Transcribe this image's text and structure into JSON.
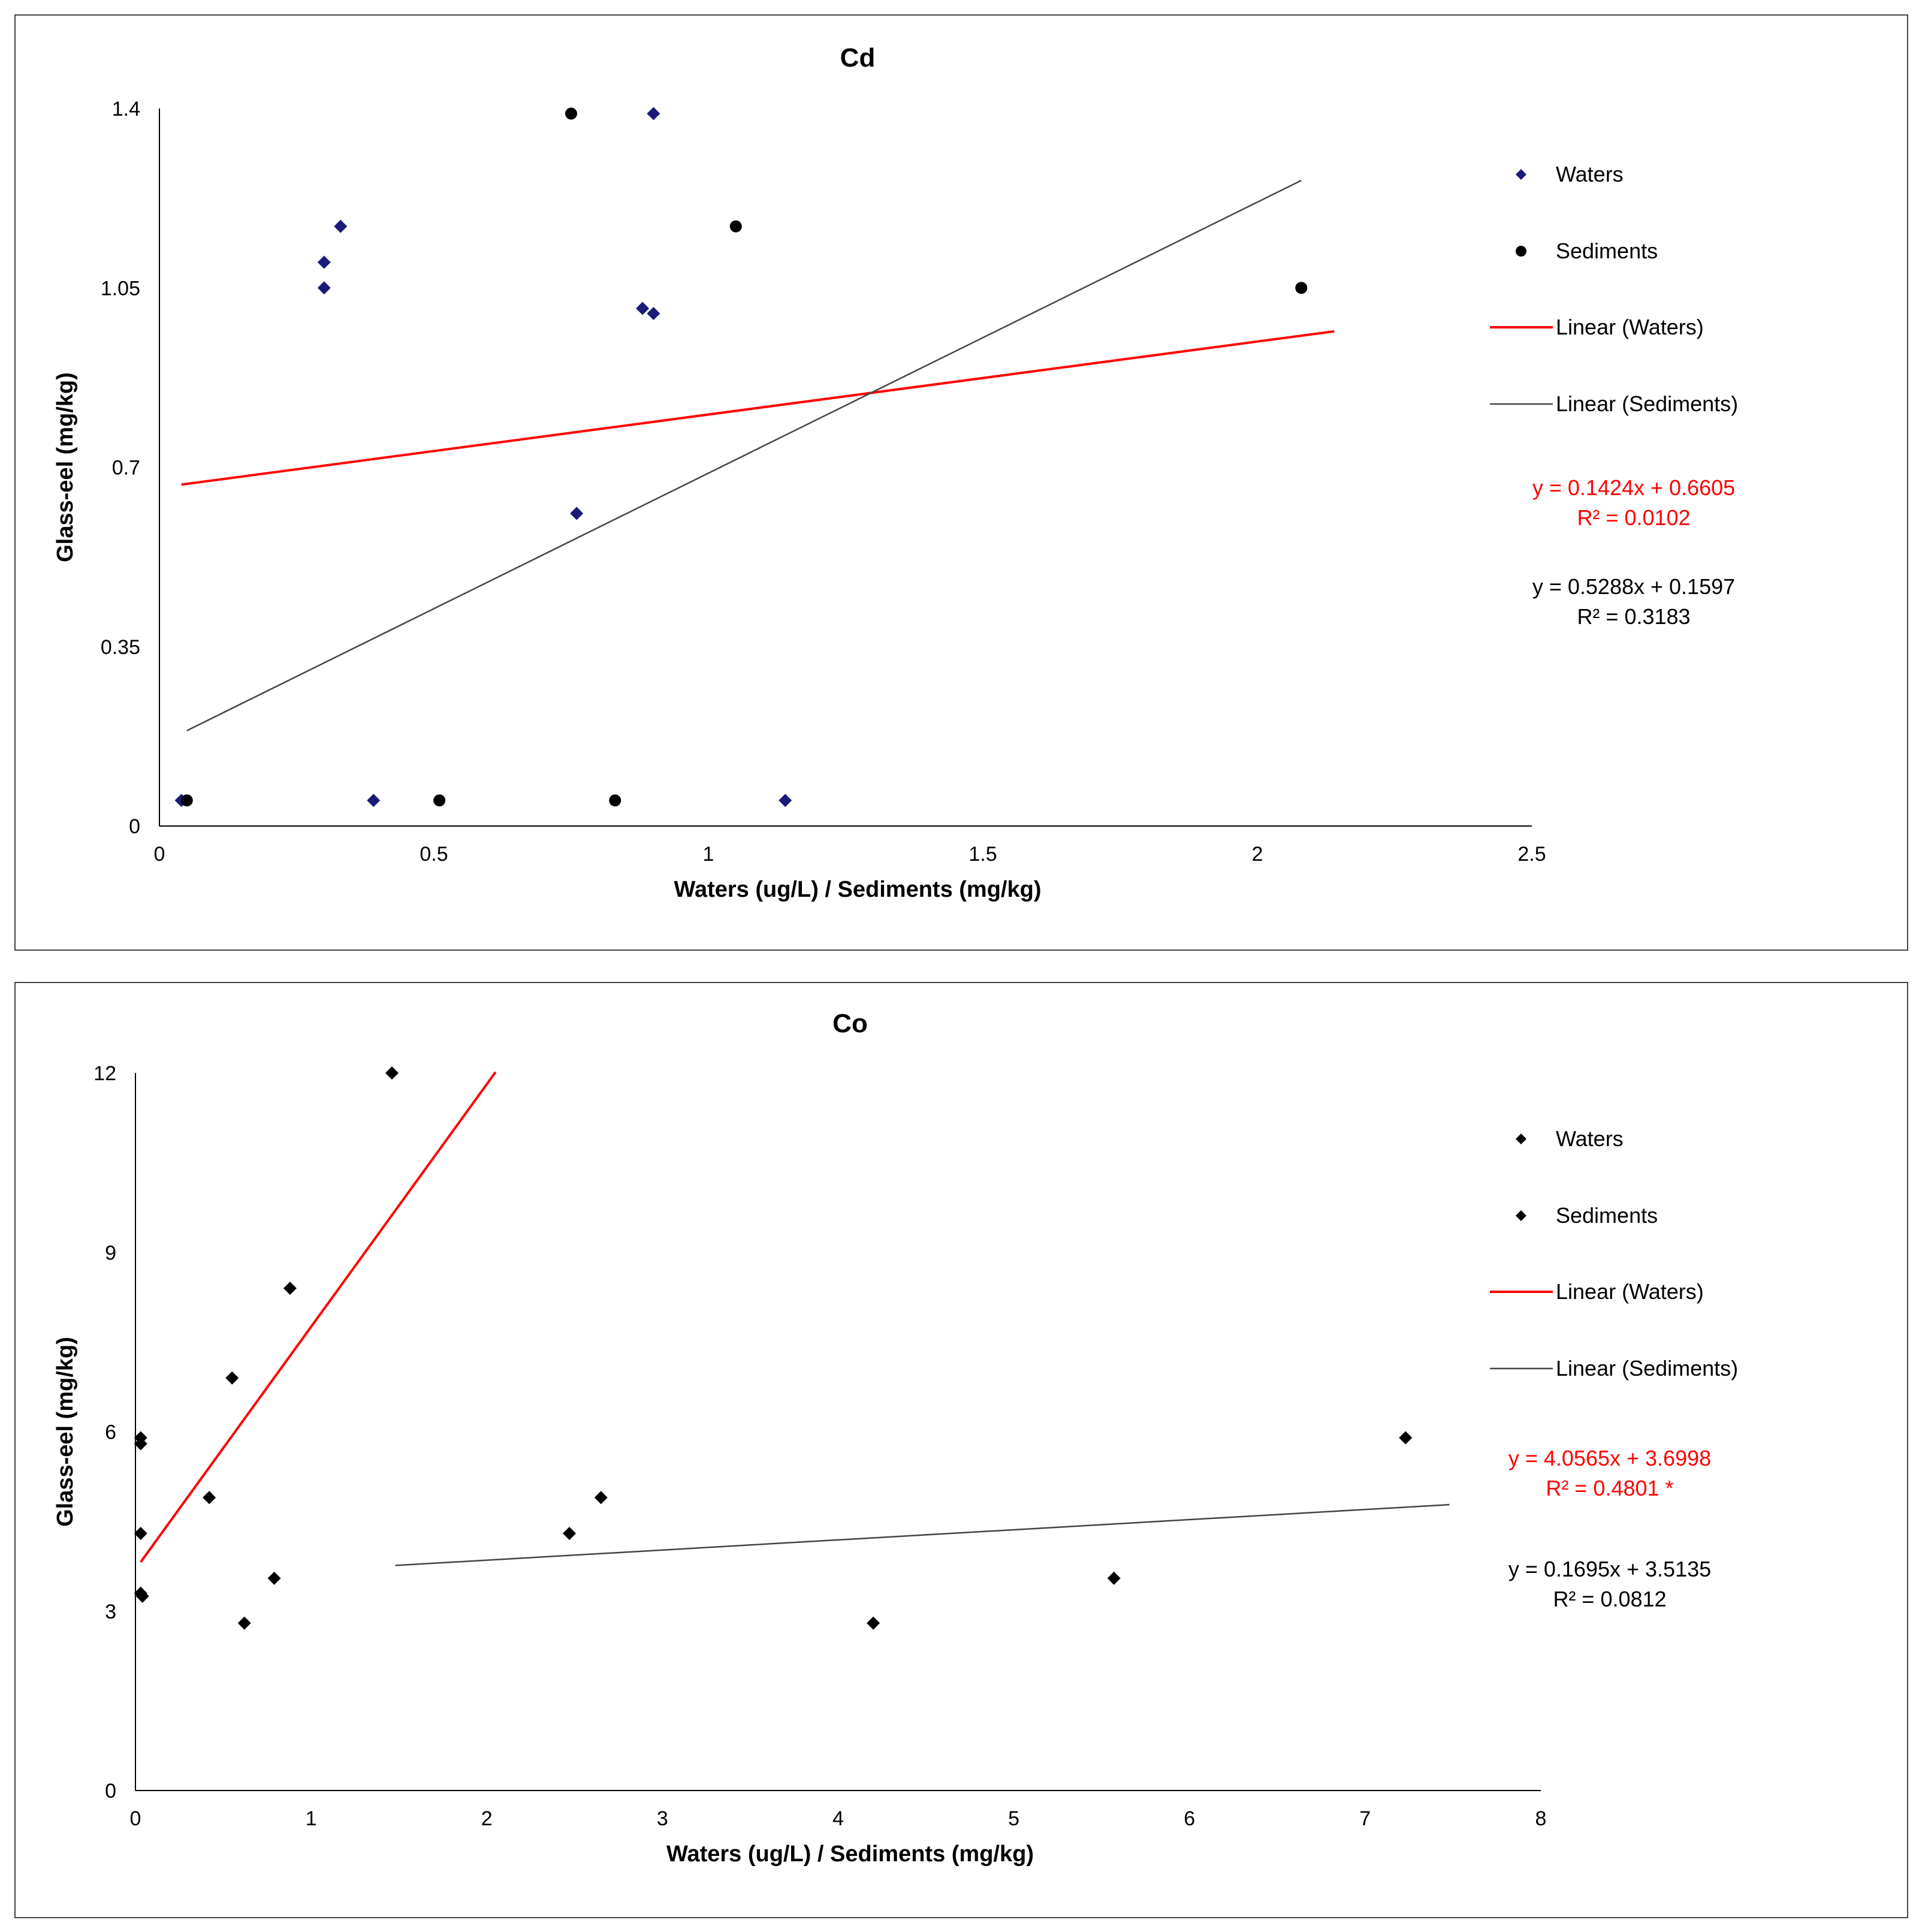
{
  "chart_data": [
    {
      "type": "scatter",
      "title": "Cd",
      "xlabel": "Waters (ug/L) / Sediments (mg/kg)",
      "ylabel": "Glass-eel (mg/kg)",
      "xlim": [
        0,
        2.5
      ],
      "ylim": [
        0,
        1.4
      ],
      "x_ticks": [
        "0",
        "0.5",
        "1",
        "1.5",
        "2",
        "2.5"
      ],
      "y_ticks": [
        "0",
        "0.35",
        "0.7",
        "1.05",
        "1.4"
      ],
      "series": [
        {
          "name": "Waters",
          "marker": "diamond",
          "color": "#1a1a7a",
          "points": [
            [
              0.04,
              0.05
            ],
            [
              0.3,
              1.05
            ],
            [
              0.3,
              1.1
            ],
            [
              0.33,
              1.17
            ],
            [
              0.39,
              0.05
            ],
            [
              0.76,
              0.61
            ],
            [
              0.88,
              1.01
            ],
            [
              0.9,
              1.0
            ],
            [
              0.9,
              1.39
            ],
            [
              1.14,
              0.05
            ]
          ]
        },
        {
          "name": "Sediments",
          "marker": "circle",
          "color": "#000000",
          "points": [
            [
              0.05,
              0.05
            ],
            [
              0.51,
              0.05
            ],
            [
              0.75,
              1.39
            ],
            [
              0.83,
              0.05
            ],
            [
              1.05,
              1.17
            ],
            [
              2.08,
              1.05
            ]
          ]
        }
      ],
      "trendlines": [
        {
          "name": "Linear (Waters)",
          "color": "#ff0000",
          "slope": 0.1424,
          "intercept": 0.6605,
          "x_range": [
            0.04,
            2.14
          ]
        },
        {
          "name": "Linear (Sediments)",
          "color": "#444444",
          "slope": 0.5288,
          "intercept": 0.1597,
          "x_range": [
            0.05,
            2.08
          ]
        }
      ],
      "legend": [
        "Waters",
        "Sediments",
        "Linear (Waters)",
        "Linear (Sediments)"
      ],
      "legend_position": "right",
      "equations": [
        {
          "line1": "y = 0.1424x + 0.6605",
          "line2": "R² = 0.0102",
          "color": "#ff0000"
        },
        {
          "line1": "y = 0.5288x + 0.1597",
          "line2": "R² = 0.3183",
          "color": "#000000"
        }
      ]
    },
    {
      "type": "scatter",
      "title": "Co",
      "xlabel": "Waters (ug/L) / Sediments (mg/kg)",
      "ylabel": "Glass-eel (mg/kg)",
      "xlim": [
        0,
        8
      ],
      "ylim": [
        0,
        12
      ],
      "x_ticks": [
        "0",
        "1",
        "2",
        "3",
        "4",
        "5",
        "6",
        "7",
        "8"
      ],
      "y_ticks": [
        "0",
        "3",
        "6",
        "9",
        "12"
      ],
      "series": [
        {
          "name": "Waters",
          "marker": "diamond",
          "color": "#000000",
          "points": [
            [
              0.03,
              5.8
            ],
            [
              0.03,
              5.9
            ],
            [
              0.03,
              4.3
            ],
            [
              0.03,
              3.3
            ],
            [
              0.04,
              3.25
            ],
            [
              0.42,
              4.9
            ],
            [
              0.55,
              6.9
            ],
            [
              0.62,
              2.8
            ],
            [
              0.79,
              3.55
            ],
            [
              0.88,
              8.4
            ],
            [
              1.46,
              12.0
            ]
          ]
        },
        {
          "name": "Sediments",
          "marker": "diamond",
          "color": "#000000",
          "points": [
            [
              2.47,
              4.3
            ],
            [
              2.65,
              4.9
            ],
            [
              4.2,
              2.8
            ],
            [
              5.57,
              3.55
            ],
            [
              7.23,
              5.9
            ]
          ]
        }
      ],
      "trendlines": [
        {
          "name": "Linear (Waters)",
          "color": "#ff0000",
          "slope": 4.0565,
          "intercept": 3.6998,
          "x_range": [
            0.03,
            2.05
          ]
        },
        {
          "name": "Linear (Sediments)",
          "color": "#444444",
          "slope": 0.1695,
          "intercept": 3.5135,
          "x_range": [
            1.48,
            7.48
          ]
        }
      ],
      "legend": [
        "Waters",
        "Sediments",
        "Linear (Waters)",
        "Linear (Sediments)"
      ],
      "legend_position": "right",
      "equations": [
        {
          "line1": "y = 4.0565x + 3.6998",
          "line2": "R² = 0.4801 *",
          "color": "#ff0000"
        },
        {
          "line1": "y = 0.1695x + 3.5135",
          "line2": "R² = 0.0812",
          "color": "#000000"
        }
      ]
    }
  ]
}
